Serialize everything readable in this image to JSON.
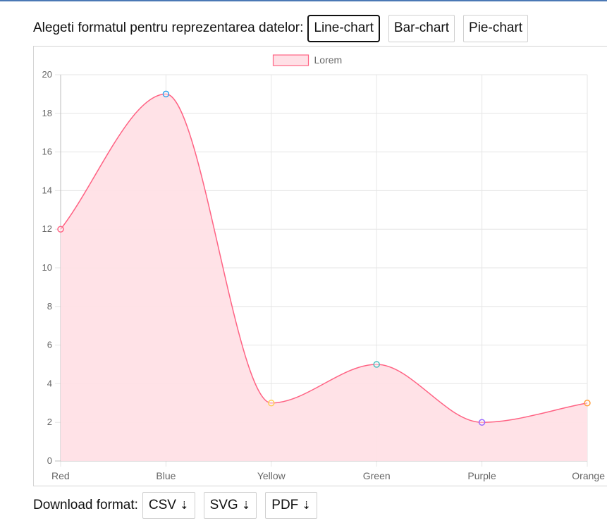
{
  "format_selector": {
    "label": "Alegeti formatul pentru reprezentarea datelor:",
    "buttons": [
      "Line-chart",
      "Bar-chart",
      "Pie-chart"
    ],
    "active": "Line-chart"
  },
  "download": {
    "label": "Download format:",
    "buttons": [
      "CSV",
      "SVG",
      "PDF"
    ],
    "arrow_glyph": "⇣"
  },
  "chart_data": {
    "type": "area",
    "categories": [
      "Red",
      "Blue",
      "Yellow",
      "Green",
      "Purple",
      "Orange"
    ],
    "series": [
      {
        "name": "Lorem",
        "values": [
          12,
          19,
          3,
          5,
          2,
          3
        ],
        "line_color": "#ff6384",
        "fill_color": "#ffe0e6"
      }
    ],
    "point_colors": [
      "#ff6384",
      "#36a2eb",
      "#ffce56",
      "#4bc0c0",
      "#9966ff",
      "#ff9f40"
    ],
    "ylim": [
      0,
      20
    ],
    "yticks": [
      "0",
      "2",
      "4",
      "6",
      "8",
      "10",
      "12",
      "14",
      "16",
      "18",
      "20"
    ],
    "grid": true,
    "smooth": true,
    "legend_position": "top"
  }
}
